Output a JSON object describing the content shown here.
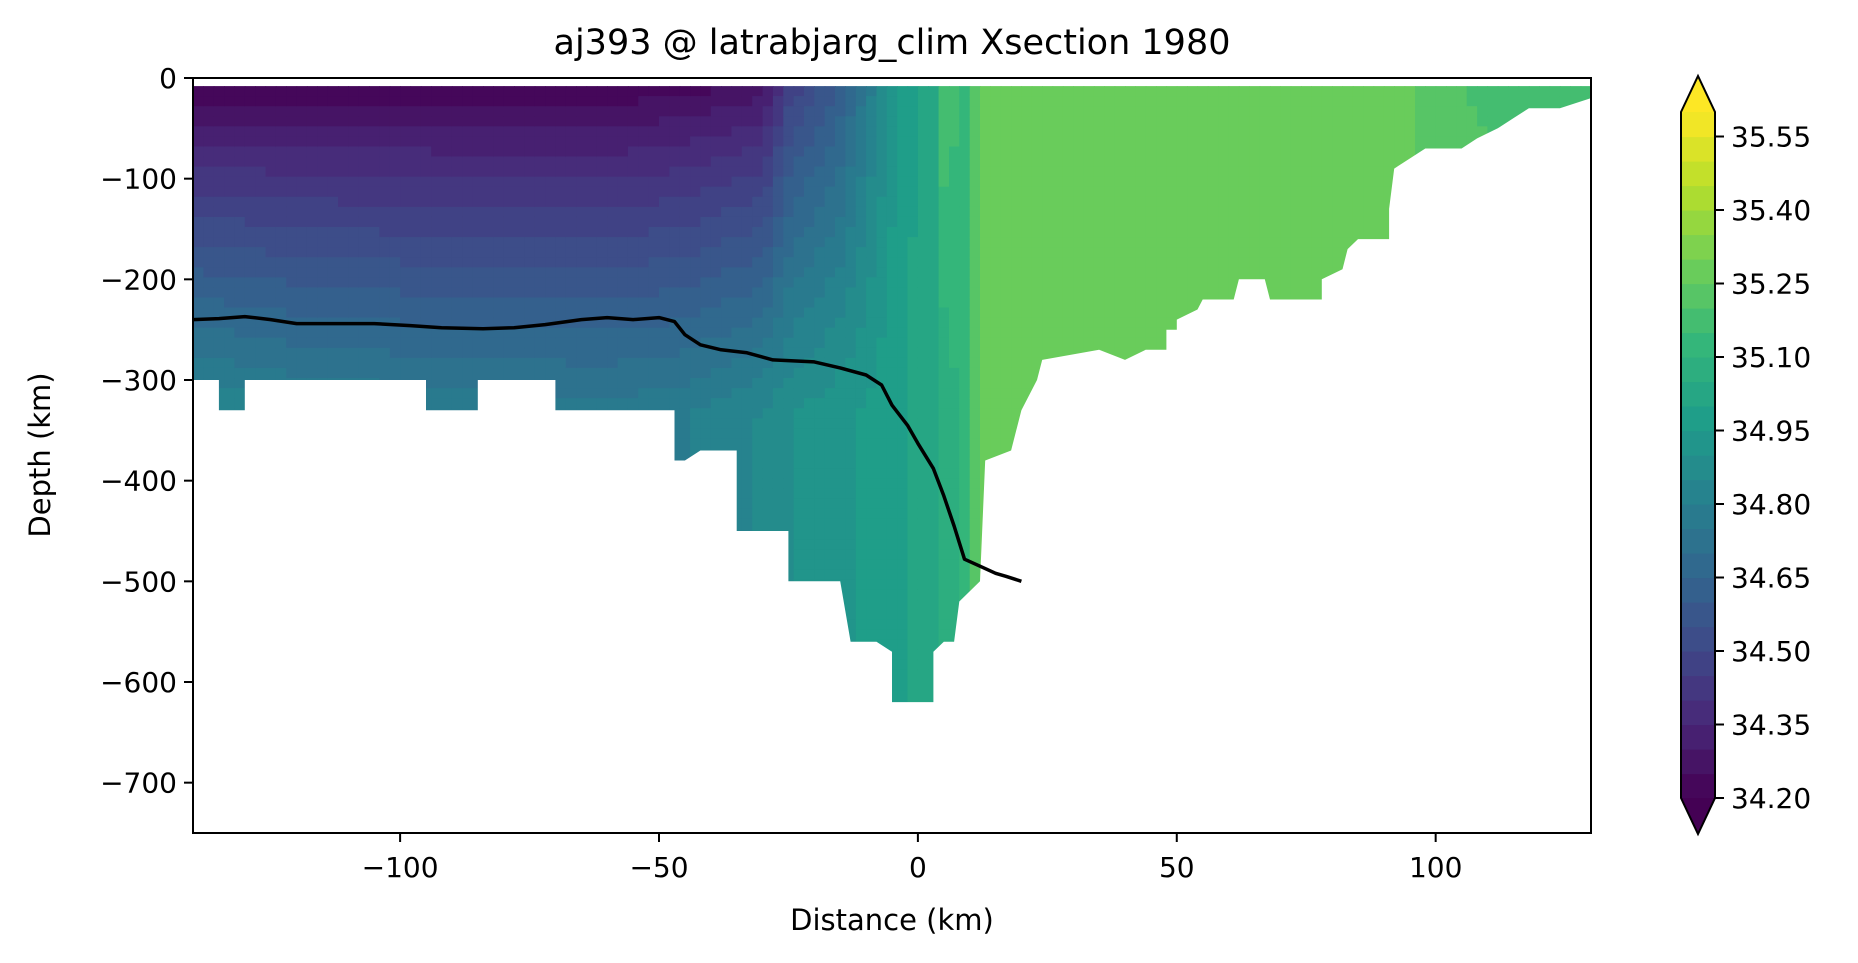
{
  "chart_data": {
    "type": "heatmap",
    "title": "aj393 @ latrabjarg_clim Xsection 1980",
    "xlabel": "Distance (km)",
    "ylabel": "Depth (km)",
    "xlim": [
      -140,
      130
    ],
    "ylim": [
      -750,
      0
    ],
    "xticks": [
      {
        "value": -100,
        "label": "−100"
      },
      {
        "value": -50,
        "label": "−50"
      },
      {
        "value": 0,
        "label": "0"
      },
      {
        "value": 50,
        "label": "50"
      },
      {
        "value": 100,
        "label": "100"
      }
    ],
    "yticks": [
      {
        "value": 0,
        "label": "0"
      },
      {
        "value": -100,
        "label": "−100"
      },
      {
        "value": -200,
        "label": "−200"
      },
      {
        "value": -300,
        "label": "−300"
      },
      {
        "value": -400,
        "label": "−400"
      },
      {
        "value": -500,
        "label": "−500"
      },
      {
        "value": -600,
        "label": "−600"
      },
      {
        "value": -700,
        "label": "−700"
      }
    ],
    "colorbar": {
      "min": 34.2,
      "max": 35.6,
      "levels": 28,
      "extend": "both",
      "colormap": "viridis",
      "ticks": [
        {
          "value": 34.2,
          "label": "34.20"
        },
        {
          "value": 34.35,
          "label": "34.35"
        },
        {
          "value": 34.5,
          "label": "34.50"
        },
        {
          "value": 34.65,
          "label": "34.65"
        },
        {
          "value": 34.8,
          "label": "34.80"
        },
        {
          "value": 34.95,
          "label": "34.95"
        },
        {
          "value": 35.1,
          "label": "35.10"
        },
        {
          "value": 35.25,
          "label": "35.25"
        },
        {
          "value": 35.4,
          "label": "35.40"
        },
        {
          "value": 35.55,
          "label": "35.55"
        }
      ]
    },
    "bathymetry_bottom": [
      [
        -140,
        -300
      ],
      [
        -135,
        -300
      ],
      [
        -135,
        -330
      ],
      [
        -130,
        -330
      ],
      [
        -130,
        -300
      ],
      [
        -95,
        -300
      ],
      [
        -95,
        -330
      ],
      [
        -85,
        -330
      ],
      [
        -85,
        -300
      ],
      [
        -70,
        -300
      ],
      [
        -70,
        -330
      ],
      [
        -47,
        -330
      ],
      [
        -47,
        -380
      ],
      [
        -45,
        -380
      ],
      [
        -42,
        -370
      ],
      [
        -35,
        -370
      ],
      [
        -35,
        -450
      ],
      [
        -25,
        -450
      ],
      [
        -25,
        -500
      ],
      [
        -15,
        -500
      ],
      [
        -13,
        -560
      ],
      [
        -8,
        -560
      ],
      [
        -5,
        -570
      ],
      [
        -5,
        -620
      ],
      [
        3,
        -620
      ],
      [
        3,
        -570
      ],
      [
        5,
        -560
      ],
      [
        7,
        -560
      ],
      [
        8,
        -520
      ],
      [
        12,
        -500
      ],
      [
        13,
        -380
      ],
      [
        18,
        -370
      ],
      [
        20,
        -330
      ],
      [
        23,
        -300
      ],
      [
        24,
        -280
      ],
      [
        35,
        -270
      ],
      [
        40,
        -280
      ],
      [
        44,
        -270
      ],
      [
        48,
        -270
      ],
      [
        48,
        -250
      ],
      [
        50,
        -250
      ],
      [
        50,
        -240
      ],
      [
        54,
        -230
      ],
      [
        55,
        -220
      ],
      [
        61,
        -220
      ],
      [
        62,
        -200
      ],
      [
        67,
        -200
      ],
      [
        68,
        -220
      ],
      [
        78,
        -220
      ],
      [
        78,
        -200
      ],
      [
        82,
        -190
      ],
      [
        83,
        -170
      ],
      [
        85,
        -160
      ],
      [
        91,
        -160
      ],
      [
        91,
        -130
      ],
      [
        92,
        -90
      ],
      [
        95,
        -80
      ],
      [
        98,
        -70
      ],
      [
        105,
        -70
      ],
      [
        108,
        -60
      ],
      [
        112,
        -50
      ],
      [
        115,
        -40
      ],
      [
        118,
        -30
      ],
      [
        124,
        -30
      ],
      [
        130,
        -20
      ]
    ],
    "salinity_columns": [
      {
        "x": -140,
        "top": 34.2,
        "bottom": 34.86
      },
      {
        "x": -120,
        "top": 34.2,
        "bottom": 34.82
      },
      {
        "x": -100,
        "top": 34.2,
        "bottom": 34.8
      },
      {
        "x": -80,
        "top": 34.2,
        "bottom": 34.79
      },
      {
        "x": -60,
        "top": 34.2,
        "bottom": 34.78
      },
      {
        "x": -45,
        "top": 34.22,
        "bottom": 34.8
      },
      {
        "x": -30,
        "top": 34.26,
        "bottom": 34.86
      },
      {
        "x": -25,
        "top": 34.45,
        "bottom": 34.9
      },
      {
        "x": -15,
        "top": 34.6,
        "bottom": 34.94
      },
      {
        "x": -8,
        "top": 34.82,
        "bottom": 34.97
      },
      {
        "x": -3,
        "top": 34.98,
        "bottom": 35.0
      },
      {
        "x": 3,
        "top": 35.02,
        "bottom": 35.02
      },
      {
        "x": 5,
        "top": 35.2,
        "bottom": 35.06
      },
      {
        "x": 9,
        "top": 35.14,
        "bottom": 35.12
      },
      {
        "x": 13,
        "top": 35.3,
        "bottom": 35.3
      },
      {
        "x": 60,
        "top": 35.3,
        "bottom": 35.3
      },
      {
        "x": 90,
        "top": 35.28,
        "bottom": 35.3
      },
      {
        "x": 105,
        "top": 35.2,
        "bottom": 35.22
      },
      {
        "x": 130,
        "top": 35.18,
        "bottom": 35.2
      }
    ],
    "surface_depth": -8,
    "series": [
      {
        "type": "line",
        "color": "#000000",
        "x": [
          -140,
          -135,
          -130,
          -125,
          -120,
          -112,
          -105,
          -98,
          -92,
          -84,
          -78,
          -72,
          -65,
          -60,
          -55,
          -50,
          -47,
          -45,
          -42,
          -38,
          -33,
          -28,
          -20,
          -15,
          -10,
          -7,
          -5,
          -2,
          0,
          3,
          5,
          7,
          9,
          12,
          15,
          17,
          20
        ],
        "y": [
          -240,
          -239,
          -237,
          -240,
          -244,
          -244,
          -244,
          -246,
          -248,
          -249,
          -248,
          -245,
          -240,
          -238,
          -240,
          -238,
          -242,
          -255,
          -265,
          -270,
          -273,
          -280,
          -282,
          -288,
          -295,
          -305,
          -325,
          -345,
          -363,
          -388,
          -415,
          -445,
          -478,
          -485,
          -492,
          -495,
          -500
        ]
      }
    ]
  }
}
